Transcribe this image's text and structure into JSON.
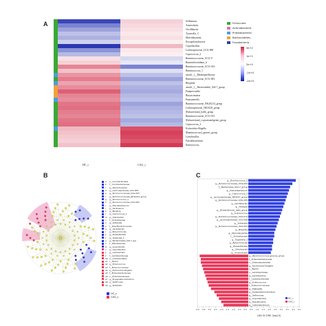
{
  "panel_labels": {
    "a": "A",
    "b": "B",
    "c": "C"
  },
  "heatmap": {
    "rows": [
      "Sellimonas",
      "Anaerofustis",
      "Oscillibacter",
      "Tyzzerella_3",
      "Marvinbryantia",
      "Erysipelotrichaceae",
      "Coprobacillus",
      "Lachnospiraceae_UCG-008",
      "Coprococcus_2",
      "Ruminococcaceae_UCG-9",
      "Ruminiclostridium_6",
      "Ruminococcaceae_UCG-014",
      "Ruminococcus_1",
      "uncult._f__Rhodospirillaceae",
      "Ruminococcaceae_UCG-003",
      "Bilophila",
      "uncult._f__Bacteroidales_S24-7_group",
      "Paraprevotella",
      "Butyricimonas",
      "Parasutterella",
      "Ruminococcaceae_NK4A214_group",
      "Lachnospiraceae_NK3A20_group",
      "[Eubacterium]_hallii_group",
      "Ruminococcaceae_UCG-013",
      "[Eubacterium]_coprostanoligenes_group",
      "Coprococcus_3",
      "Escherichia-Shigella",
      "[Ruminococcus]_gnavus_group",
      "Lactobacillus",
      "Faecalibacterium",
      "Enterococcus"
    ],
    "phylum_per_row": [
      "Firmicutes",
      "Firmicutes",
      "Firmicutes",
      "Firmicutes",
      "Firmicutes",
      "Firmicutes",
      "Firmicutes",
      "Firmicutes",
      "Firmicutes",
      "Firmicutes",
      "Firmicutes",
      "Firmicutes",
      "Firmicutes",
      "Proteobacteria",
      "Firmicutes",
      "Proteobacteria",
      "Bacteroidetes",
      "Bacteroidetes",
      "Bacteroidetes",
      "Proteobacteria",
      "Firmicutes",
      "Firmicutes",
      "Firmicutes",
      "Firmicutes",
      "Firmicutes",
      "Firmicutes",
      "Proteobacteria",
      "Firmicutes",
      "Firmicutes",
      "Firmicutes",
      "Firmicutes"
    ],
    "columns": [
      "HC_c",
      "CAG_c"
    ],
    "values": [
      [
        -2.4,
        0.6
      ],
      [
        -1.6,
        0.5
      ],
      [
        -1.2,
        0.4
      ],
      [
        -0.8,
        0.3
      ],
      [
        -1.0,
        0.4
      ],
      [
        -0.6,
        0.2
      ],
      [
        -2.6,
        0.9
      ],
      [
        -1.4,
        0.3
      ],
      [
        -0.9,
        0.2
      ],
      [
        0.4,
        -0.5
      ],
      [
        0.6,
        -0.3
      ],
      [
        1.6,
        -1.6
      ],
      [
        0.8,
        -0.4
      ],
      [
        1.4,
        -0.8
      ],
      [
        1.7,
        -1.2
      ],
      [
        1.2,
        -0.8
      ],
      [
        1.5,
        -1.0
      ],
      [
        2.1,
        -1.1
      ],
      [
        1.6,
        -0.9
      ],
      [
        1.5,
        -0.8
      ],
      [
        1.8,
        -1.2
      ],
      [
        1.9,
        -1.0
      ],
      [
        1.7,
        -0.9
      ],
      [
        1.6,
        -0.8
      ],
      [
        1.8,
        -1.1
      ],
      [
        1.9,
        -0.9
      ],
      [
        0.9,
        2.3
      ],
      [
        0.8,
        2.5
      ],
      [
        0.7,
        2.4
      ],
      [
        0.6,
        2.2
      ],
      [
        0.8,
        2.6
      ]
    ],
    "phylum_legend": [
      {
        "name": "Firmicutes",
        "color": "#3aa935"
      },
      {
        "name": "Actinobacteria",
        "color": "#e06fb8"
      },
      {
        "name": "Proteobacteria",
        "color": "#4aa0d8"
      },
      {
        "name": "Bacteroidetes",
        "color": "#f0a23a"
      },
      {
        "name": "Fusobacteria",
        "color": "#2f3f9f"
      }
    ],
    "phylum_colors": {
      "Firmicutes": "#3aa935",
      "Proteobacteria": "#4aa0d8",
      "Bacteroidetes": "#f0a23a",
      "Actinobacteria": "#e06fb8",
      "Fusobacteria": "#2f3f9f"
    },
    "scale_ticks": [
      "3e+2",
      "1e+1",
      "2e+0",
      "-1e+0",
      "-2e+0"
    ]
  },
  "cladogram": {
    "legend": [
      {
        "code": "a",
        "label": "o__Coriobacteriales",
        "group": "HC_c"
      },
      {
        "code": "b",
        "label": "f__Coriobacteriaceae",
        "group": "HC_c"
      },
      {
        "code": "c",
        "label": "g__Marvinbryantia",
        "group": "HC_c"
      },
      {
        "code": "d",
        "label": "g__Lachnospiraceae_UCG-008",
        "group": "HC_c"
      },
      {
        "code": "e",
        "label": "g__Ruminococcaceae_UCG-003",
        "group": "HC_c"
      },
      {
        "code": "f",
        "label": "g__Ruminococcaceae_NK4A214_group",
        "group": "HC_c"
      },
      {
        "code": "g",
        "label": "g__Ruminococcus_1",
        "group": "HC_c"
      },
      {
        "code": "h",
        "label": "g__Ruminococcaceae_UCG-002",
        "group": "HC_c"
      },
      {
        "code": "i",
        "label": "g__Faecalibacterium",
        "group": "HC_c"
      },
      {
        "code": "j",
        "label": "g__Oscillospira",
        "group": "HC_c"
      },
      {
        "code": "k",
        "label": "g__Bilophila",
        "group": "HC_c"
      },
      {
        "code": "l",
        "label": "g__Coprococcus_1",
        "group": "HC_c"
      },
      {
        "code": "m",
        "label": "g__Odoribacter",
        "group": "HC_c"
      },
      {
        "code": "n",
        "label": "f__Victivallaceae",
        "group": "HC_c"
      },
      {
        "code": "o",
        "label": "g__Sutterella",
        "group": "HC_c"
      },
      {
        "code": "p",
        "label": "f__Desulfovibrionaceae",
        "group": "HC_c"
      },
      {
        "code": "q",
        "label": "g__Oscillibacter",
        "group": "HC_c"
      },
      {
        "code": "r",
        "label": "g__Butyricimonas",
        "group": "HC_c"
      },
      {
        "code": "s",
        "label": "g__Parasutterella",
        "group": "HC_c"
      },
      {
        "code": "t",
        "label": "g__Tyzzerella_3",
        "group": "HC_c"
      },
      {
        "code": "u",
        "label": "g__Bacteroidales_S24-7_grp",
        "group": "HC_c"
      },
      {
        "code": "v",
        "label": "f__Rikenellaceae",
        "group": "HC_c"
      },
      {
        "code": "w",
        "label": "g__Anaerofustis",
        "group": "HC_c"
      },
      {
        "code": "x",
        "label": "g__Coprobacillus",
        "group": "CAG_c"
      },
      {
        "code": "y",
        "label": "g__Lactobacillus",
        "group": "CAG_c"
      },
      {
        "code": "z",
        "label": "f__Lactobacillaceae",
        "group": "CAG_c"
      },
      {
        "code": "a0",
        "label": "o__Lactobacillales",
        "group": "CAG_c"
      },
      {
        "code": "a1",
        "label": "c__Bacilli",
        "group": "CAG_c"
      },
      {
        "code": "a2",
        "label": "g__Enterococcus",
        "group": "CAG_c"
      },
      {
        "code": "a3",
        "label": "f__Enterococcaceae",
        "group": "CAG_c"
      },
      {
        "code": "a4",
        "label": "g__Escherichia-Shigella",
        "group": "CAG_c"
      },
      {
        "code": "a5",
        "label": "f__Enterobacteriaceae",
        "group": "CAG_c"
      },
      {
        "code": "a6",
        "label": "o__Enterobacteriales",
        "group": "CAG_c"
      },
      {
        "code": "a7",
        "label": "g__Erysipelatoclostridium",
        "group": "CAG_c"
      },
      {
        "code": "a8",
        "label": "g__Sellimonas",
        "group": "CAG_c"
      },
      {
        "code": "a9",
        "label": "g__Klebsiella",
        "group": "CAG_c"
      }
    ],
    "groups": [
      {
        "name": "HC_c",
        "color": "#2635d8"
      },
      {
        "name": "CAG_c",
        "color": "#e8385a"
      }
    ]
  },
  "chart_data": {
    "type": "bar",
    "xlabel": "LDA SCORE (log10)",
    "xlim": [
      -4.5,
      4.5
    ],
    "xticks": [
      "-4.5",
      "-3.5",
      "-3.0",
      "-2.5",
      "-2.0",
      "-1.5",
      "-1.0",
      "-0.5",
      "0.0",
      "0.5",
      "1.0",
      "1.5",
      "2.0",
      "2.5",
      "3.0",
      "3.5",
      "4.0",
      "4.5"
    ],
    "series": [
      {
        "name": "HC_c",
        "color": "#3342e0"
      },
      {
        "name": "CAG_c",
        "color": "#e8385a"
      }
    ],
    "bars": [
      {
        "label": "g__Ruminococcus_2",
        "group": "HC_c",
        "value": 4.2
      },
      {
        "label": "g__Ruminococcaceae_UCG-002",
        "group": "HC_c",
        "value": 3.9
      },
      {
        "label": "f__Bacteroides_S24-7_group",
        "group": "HC_c",
        "value": 3.7
      },
      {
        "label": "g__Faecalibacterium",
        "group": "HC_c",
        "value": 3.6
      },
      {
        "label": "g__Coprococcus_2",
        "group": "HC_c",
        "value": 3.5
      },
      {
        "label": "g__Lachnospiraceae_ND3007_group",
        "group": "HC_c",
        "value": 3.4
      },
      {
        "label": "g__Ruminococcaceae_UCG-005",
        "group": "HC_c",
        "value": 3.3
      },
      {
        "label": "g__Oscillibacter",
        "group": "HC_c",
        "value": 3.2
      },
      {
        "label": "g__Alistipes",
        "group": "HC_c",
        "value": 3.1
      },
      {
        "label": "g__[Eubacterium]_hallii_group",
        "group": "HC_c",
        "value": 3.0
      },
      {
        "label": "g__Coprococcus",
        "group": "HC_c",
        "value": 2.9
      },
      {
        "label": "g__Ruminococcaceae_UCG-014",
        "group": "HC_c",
        "value": 2.8
      },
      {
        "label": "g__Lachnospiraceae_UCG-008",
        "group": "HC_c",
        "value": 2.7
      },
      {
        "label": "g__Sutterella",
        "group": "HC_c",
        "value": 2.6
      },
      {
        "label": "g__Ruminococcaceae_UCG-003",
        "group": "HC_c",
        "value": 2.5
      },
      {
        "label": "g__Bilophila",
        "group": "HC_c",
        "value": 2.4
      },
      {
        "label": "g__Marvinbryantia",
        "group": "HC_c",
        "value": 2.3
      },
      {
        "label": "f__Victivallaceae",
        "group": "HC_c",
        "value": 2.3
      },
      {
        "label": "g__Tyzzerella_3",
        "group": "HC_c",
        "value": 2.2
      },
      {
        "label": "g__Butyricimonas",
        "group": "HC_c",
        "value": 2.2
      },
      {
        "label": "g__Parasutterella",
        "group": "HC_c",
        "value": 2.1
      },
      {
        "label": "g__Odoribacter",
        "group": "HC_c",
        "value": 2.1
      },
      {
        "label": "g__Anaerofustis",
        "group": "HC_c",
        "value": 2.0
      },
      {
        "label": "g__[Ruminococcus]_gnavus_group",
        "group": "CAG_c",
        "value": -4.3
      },
      {
        "label": "f__Enterobacteriaceae",
        "group": "CAG_c",
        "value": -4.2
      },
      {
        "label": "o__Enterobacteriales",
        "group": "CAG_c",
        "value": -4.2
      },
      {
        "label": "g__Escherichia-Shigella",
        "group": "CAG_c",
        "value": -4.1
      },
      {
        "label": "c__Bacilli",
        "group": "CAG_c",
        "value": -4.0
      },
      {
        "label": "o__Lactobacillales",
        "group": "CAG_c",
        "value": -3.9
      },
      {
        "label": "g__Lactobacillus",
        "group": "CAG_c",
        "value": -3.8
      },
      {
        "label": "f__Lactobacillaceae",
        "group": "CAG_c",
        "value": -3.7
      },
      {
        "label": "g__Enterococcus",
        "group": "CAG_c",
        "value": -3.6
      },
      {
        "label": "f__Enterococcaceae",
        "group": "CAG_c",
        "value": -3.5
      },
      {
        "label": "g__Klebsiella",
        "group": "CAG_c",
        "value": -3.3
      },
      {
        "label": "g__Erysipelatoclostridium",
        "group": "CAG_c",
        "value": -3.0
      },
      {
        "label": "g__Sellimonas",
        "group": "CAG_c",
        "value": -2.8
      },
      {
        "label": "g__Coprobacillus",
        "group": "CAG_c",
        "value": -2.6
      },
      {
        "label": "g__Desulfovibrio",
        "group": "CAG_c",
        "value": -2.4
      },
      {
        "label": "g__Catenibacterium",
        "group": "CAG_c",
        "value": -2.2
      }
    ]
  }
}
